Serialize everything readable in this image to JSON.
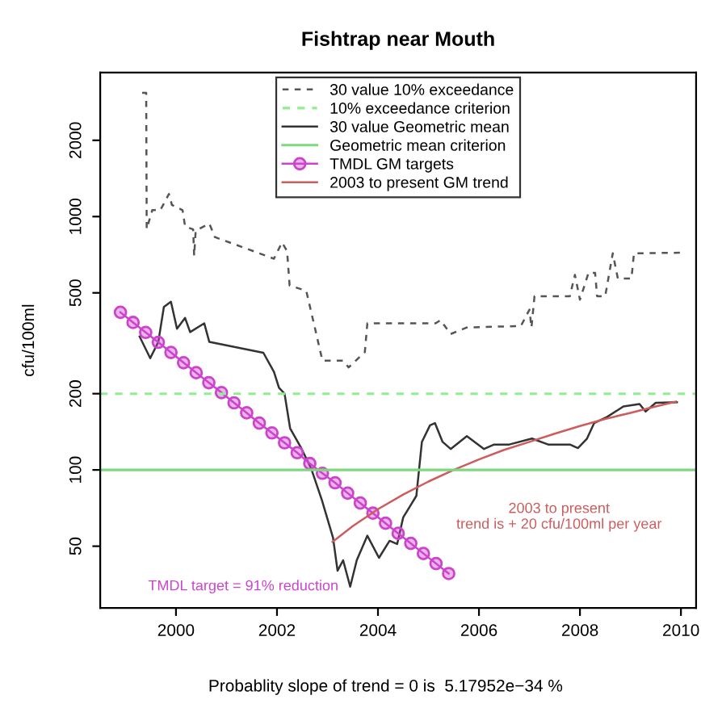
{
  "chart_data": {
    "type": "line",
    "title": "Fishtrap near Mouth",
    "ylabel": "cfu/100ml",
    "log": "y",
    "xlim": [
      1998.5,
      2010.3
    ],
    "xticks": [
      2000,
      2002,
      2004,
      2006,
      2008,
      2010
    ],
    "ylim": [
      28.5,
      3700
    ],
    "yticks": [
      50,
      100,
      200,
      500,
      1000,
      2000
    ],
    "grid": false,
    "legend": "top",
    "marker": "none",
    "series": [
      {
        "name": "30 value 10% exceedance",
        "color": "#555555",
        "line_style": "dashed",
        "x": [
          1999.33,
          1999.41,
          1999.42,
          1999.53,
          1999.69,
          1999.86,
          1999.92,
          2000.13,
          2000.18,
          2000.34,
          2000.36,
          2000.39,
          2000.66,
          2000.77,
          2001.94,
          2002.1,
          2002.2,
          2002.25,
          2002.58,
          2002.73,
          2002.9,
          2003.31,
          2003.42,
          2003.74,
          2003.79,
          2005.14,
          2005.24,
          2005.44,
          2005.76,
          2006.83,
          2007.0,
          2007.04,
          2007.1,
          2007.8,
          2007.9,
          2008.0,
          2008.17,
          2008.3,
          2008.34,
          2008.5,
          2008.65,
          2008.75,
          2009.02,
          2009.07,
          2009.98
        ],
        "values": [
          3080,
          3080,
          893,
          1060,
          1060,
          1227,
          1112,
          1060,
          915,
          890,
          700,
          880,
          938,
          830,
          682,
          791,
          731,
          535,
          509,
          379,
          270,
          270,
          254,
          292,
          379,
          379,
          390,
          344,
          365,
          370,
          429,
          365,
          485,
          485,
          589,
          470,
          600,
          600,
          485,
          485,
          716,
          570,
          570,
          716,
          720
        ]
      },
      {
        "name": "30 value Geometric mean",
        "color": "#333333",
        "line_style": "solid",
        "x": [
          1999.28,
          1999.49,
          1999.65,
          1999.76,
          1999.9,
          2000.02,
          2000.18,
          2000.28,
          2000.56,
          2000.66,
          2001.73,
          2001.94,
          2002.04,
          2002.15,
          2002.26,
          2002.47,
          2002.68,
          2002.89,
          2003.11,
          2003.2,
          2003.31,
          2003.45,
          2003.58,
          2003.79,
          2004.02,
          2004.23,
          2004.38,
          2004.5,
          2004.76,
          2004.87,
          2005.03,
          2005.13,
          2005.28,
          2005.44,
          2005.76,
          2006.1,
          2006.3,
          2006.6,
          2007.05,
          2007.37,
          2007.8,
          2007.96,
          2008.14,
          2008.28,
          2008.54,
          2008.86,
          2009.18,
          2009.3,
          2009.5,
          2009.92
        ],
        "values": [
          336,
          276,
          320,
          440,
          461,
          361,
          398,
          350,
          379,
          320,
          290,
          244,
          211,
          200,
          146,
          123,
          101,
          76,
          54,
          40,
          44,
          34.6,
          44,
          55,
          45,
          52.5,
          51,
          65,
          79,
          129,
          150,
          153,
          129,
          121,
          136,
          121,
          126,
          126,
          133,
          126,
          126,
          122,
          133,
          153,
          162,
          178,
          182,
          170,
          184,
          185
        ]
      },
      {
        "name": "TMDL GM targets",
        "color": "#cc44cc",
        "line_style": "solid",
        "marker": "circle",
        "x": [
          1998.9,
          1999.15,
          1999.4,
          1999.65,
          1999.9,
          2000.15,
          2000.4,
          2000.65,
          2000.9,
          2001.15,
          2001.4,
          2001.65,
          2001.9,
          2002.15,
          2002.4,
          2002.65,
          2002.9,
          2003.15,
          2003.4,
          2003.65,
          2003.9,
          2004.15,
          2004.4,
          2004.65,
          2004.9,
          2005.15,
          2005.4
        ],
        "values": [
          419,
          382,
          349,
          319,
          291,
          265,
          242,
          221,
          202,
          184,
          168,
          153,
          140,
          128,
          117,
          106,
          97,
          89,
          81,
          74,
          67.5,
          61.6,
          56.2,
          51.3,
          46.8,
          42.7,
          39
        ]
      },
      {
        "name": "2003 to present GM trend",
        "color": "#cd5c5c",
        "line_style": "solid",
        "x": [
          2003.1,
          2003.5,
          2004,
          2004.5,
          2005,
          2005.5,
          2006,
          2006.5,
          2007,
          2007.5,
          2008,
          2008.5,
          2009,
          2009.5,
          2009.9
        ],
        "values": [
          52,
          60,
          70,
          80,
          90,
          100,
          110,
          120,
          129,
          139,
          149,
          159,
          168,
          178,
          186
        ]
      }
    ],
    "ref_lines": [
      {
        "axis": "y",
        "value": 200,
        "label": "10% exceedance criterion",
        "color": "#90ee90",
        "line_style": "dashed"
      },
      {
        "axis": "y",
        "value": 100,
        "label": "Geometric mean criterion",
        "color": "#7fd87f",
        "line_style": "solid"
      }
    ],
    "annotations": [
      "2003 to present\ntrend is + 20 cfu/100ml per year",
      "TMDL target = 91% reduction",
      "Probablity slope of trend = 0 is  5.17952e−34 %"
    ]
  }
}
